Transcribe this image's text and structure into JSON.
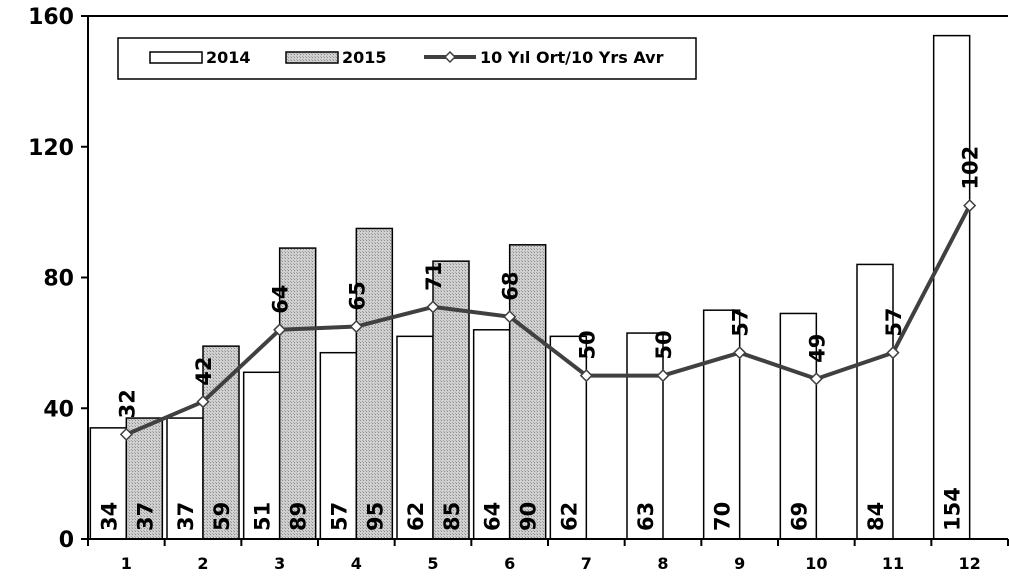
{
  "chart_data": {
    "type": "bar",
    "title": "",
    "xlabel": "",
    "ylabel": "",
    "categories": [
      "1",
      "2",
      "3",
      "4",
      "5",
      "6",
      "7",
      "8",
      "9",
      "10",
      "11",
      "12"
    ],
    "series": [
      {
        "name": "2014",
        "type": "bar",
        "color": "#ffffff",
        "values": [
          34,
          37,
          51,
          57,
          62,
          64,
          62,
          63,
          70,
          69,
          84,
          154
        ]
      },
      {
        "name": "2015",
        "type": "bar",
        "color": "#c8c8c8",
        "values": [
          37,
          59,
          89,
          95,
          85,
          90,
          null,
          null,
          null,
          null,
          null,
          null
        ]
      },
      {
        "name": "10 Yıl Ort/10 Yrs Avr",
        "type": "line",
        "color": "#404040",
        "values": [
          32,
          42,
          64,
          65,
          71,
          68,
          50,
          50,
          57,
          49,
          57,
          102
        ]
      }
    ],
    "ylim": [
      0,
      160
    ],
    "yticks": [
      0,
      40,
      80,
      120,
      160
    ],
    "grid": false,
    "legend_position": "top-left"
  }
}
